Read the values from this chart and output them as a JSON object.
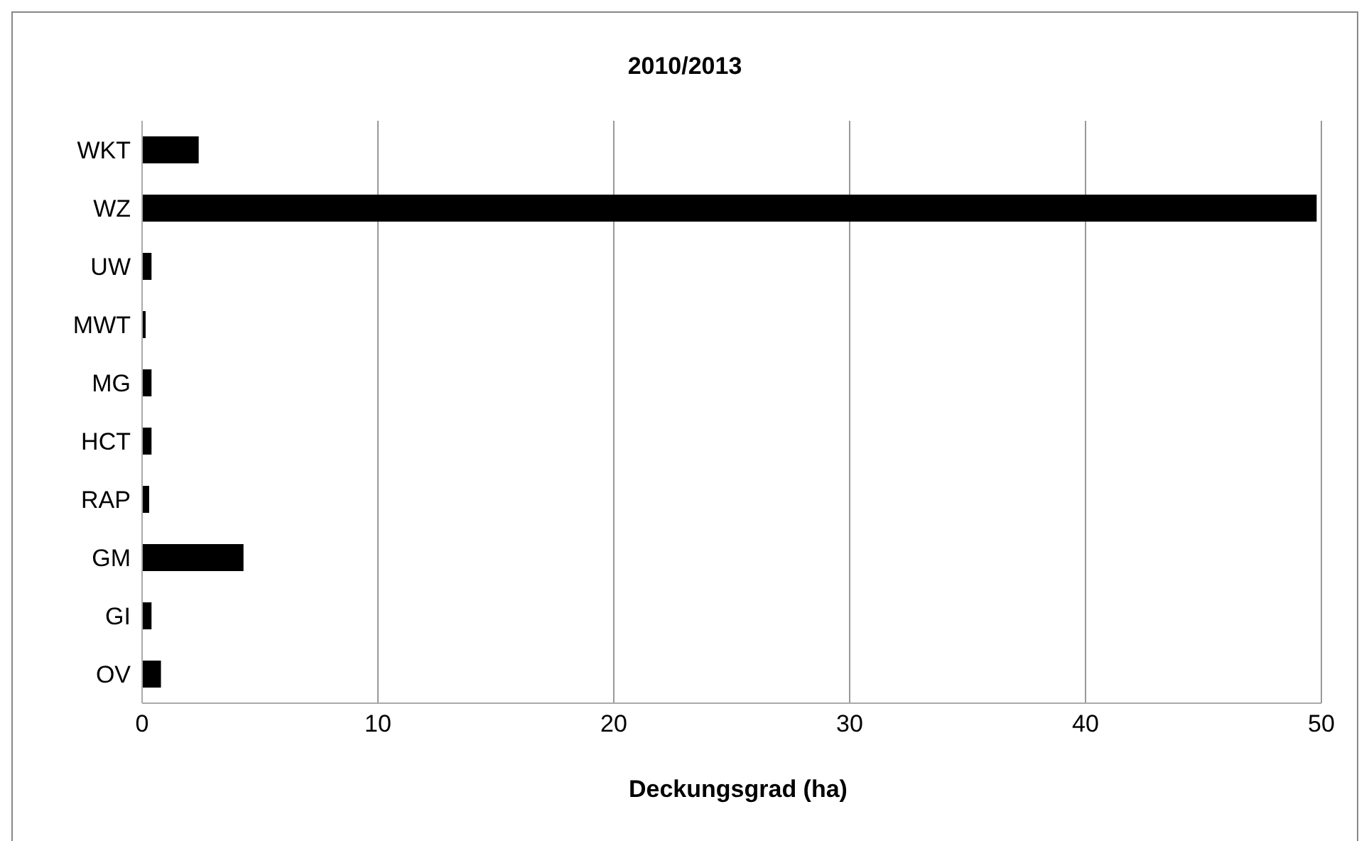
{
  "chart_data": {
    "type": "bar",
    "orientation": "horizontal",
    "title": "2010/2013",
    "xlabel": "Deckungsgrad (ha)",
    "categories": [
      "WKT",
      "WZ",
      "UW",
      "MWT",
      "MG",
      "HCT",
      "RAP",
      "GM",
      "GI",
      "OV"
    ],
    "values": [
      2.4,
      49.8,
      0.4,
      0.15,
      0.4,
      0.4,
      0.3,
      4.3,
      0.4,
      0.8
    ],
    "color": "#000000",
    "xlim": [
      0,
      50
    ],
    "xticks": [
      0,
      10,
      20,
      30,
      40,
      50
    ],
    "grid": "x",
    "legend": false
  }
}
